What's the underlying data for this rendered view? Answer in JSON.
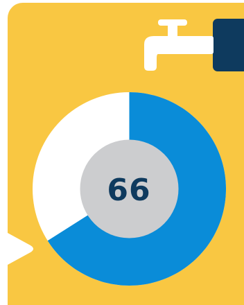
{
  "colors": {
    "panel_background": "#F9C742",
    "side_tab": "#0E3A5E",
    "faucet": "#FFFFFF",
    "pointer": "#FFFFFF",
    "ring_filled": "#0A8CD8",
    "ring_remaining": "#FFFFFF",
    "center_disc": "#CCCDCF",
    "value_text": "#0E3A5E"
  },
  "icons": {
    "faucet": "faucet-icon",
    "pointer": "pointer-triangle-icon"
  },
  "gauge": {
    "value": 66,
    "value_label": "66",
    "max": 100
  }
}
